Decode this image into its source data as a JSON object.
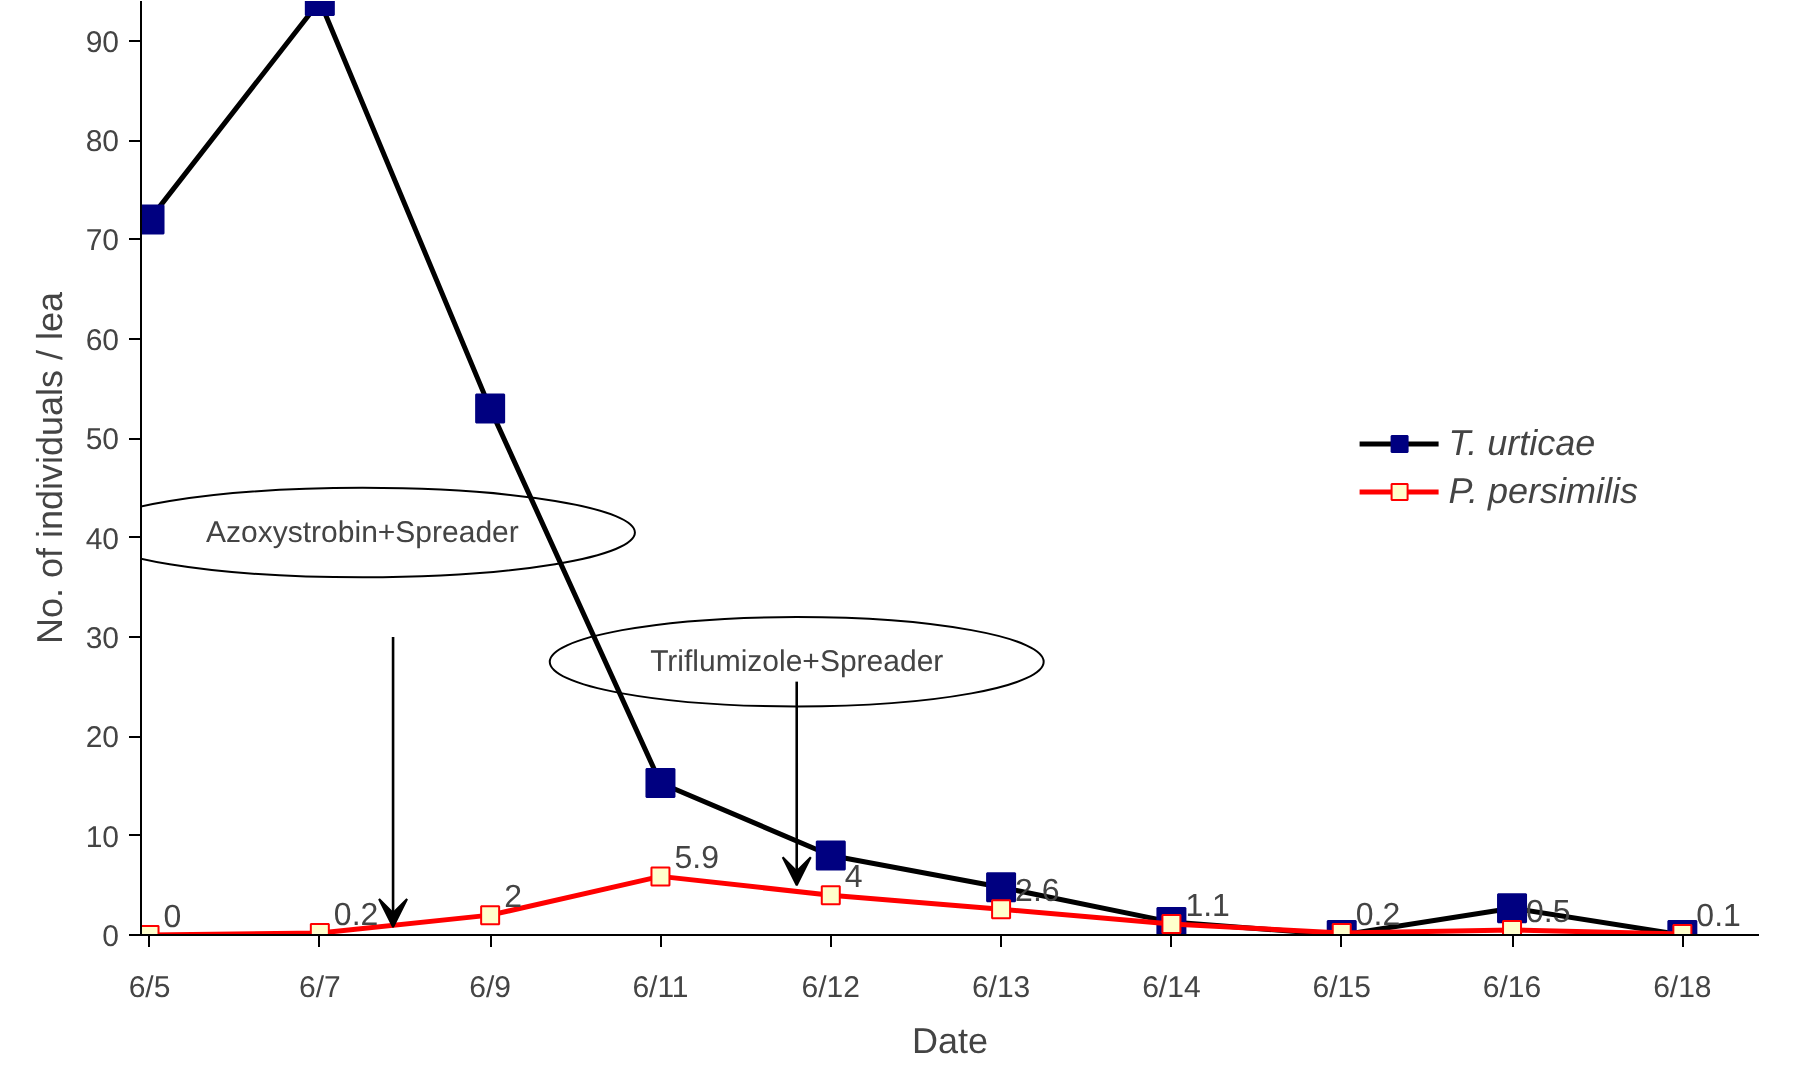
{
  "chart_data": {
    "type": "line",
    "xlabel": "Date",
    "ylabel": "No. of individuals / lea",
    "categories": [
      "6/5",
      "6/7",
      "6/9",
      "6/11",
      "6/12",
      "6/13",
      "6/14",
      "6/15",
      "6/16",
      "6/18"
    ],
    "series": [
      {
        "name": "T. urticae",
        "color": "#000000",
        "values": [
          72,
          94,
          53,
          15.3,
          8,
          4.8,
          1.3,
          0,
          2.7,
          0
        ]
      },
      {
        "name": "P. persimilis",
        "color": "#ff0000",
        "values": [
          0,
          0.2,
          2,
          5.9,
          4,
          2.6,
          1.1,
          0.2,
          0.5,
          0.1
        ],
        "value_labels": [
          "0",
          "0.2",
          "2",
          "5.9",
          "4",
          "2.6",
          "1.1",
          "0.2",
          "0.5",
          "0.1"
        ]
      }
    ],
    "ylim": [
      0,
      94
    ],
    "yticks": [
      0,
      10,
      20,
      30,
      40,
      50,
      60,
      70,
      80,
      90
    ],
    "marker": "square",
    "line_style": "solid",
    "grid": false,
    "legend": "right",
    "annotations": [
      "Azoxystrobin+Spreader",
      {
        "text": "Triflumizole+Spreader",
        "y": 5
      }
    ]
  }
}
